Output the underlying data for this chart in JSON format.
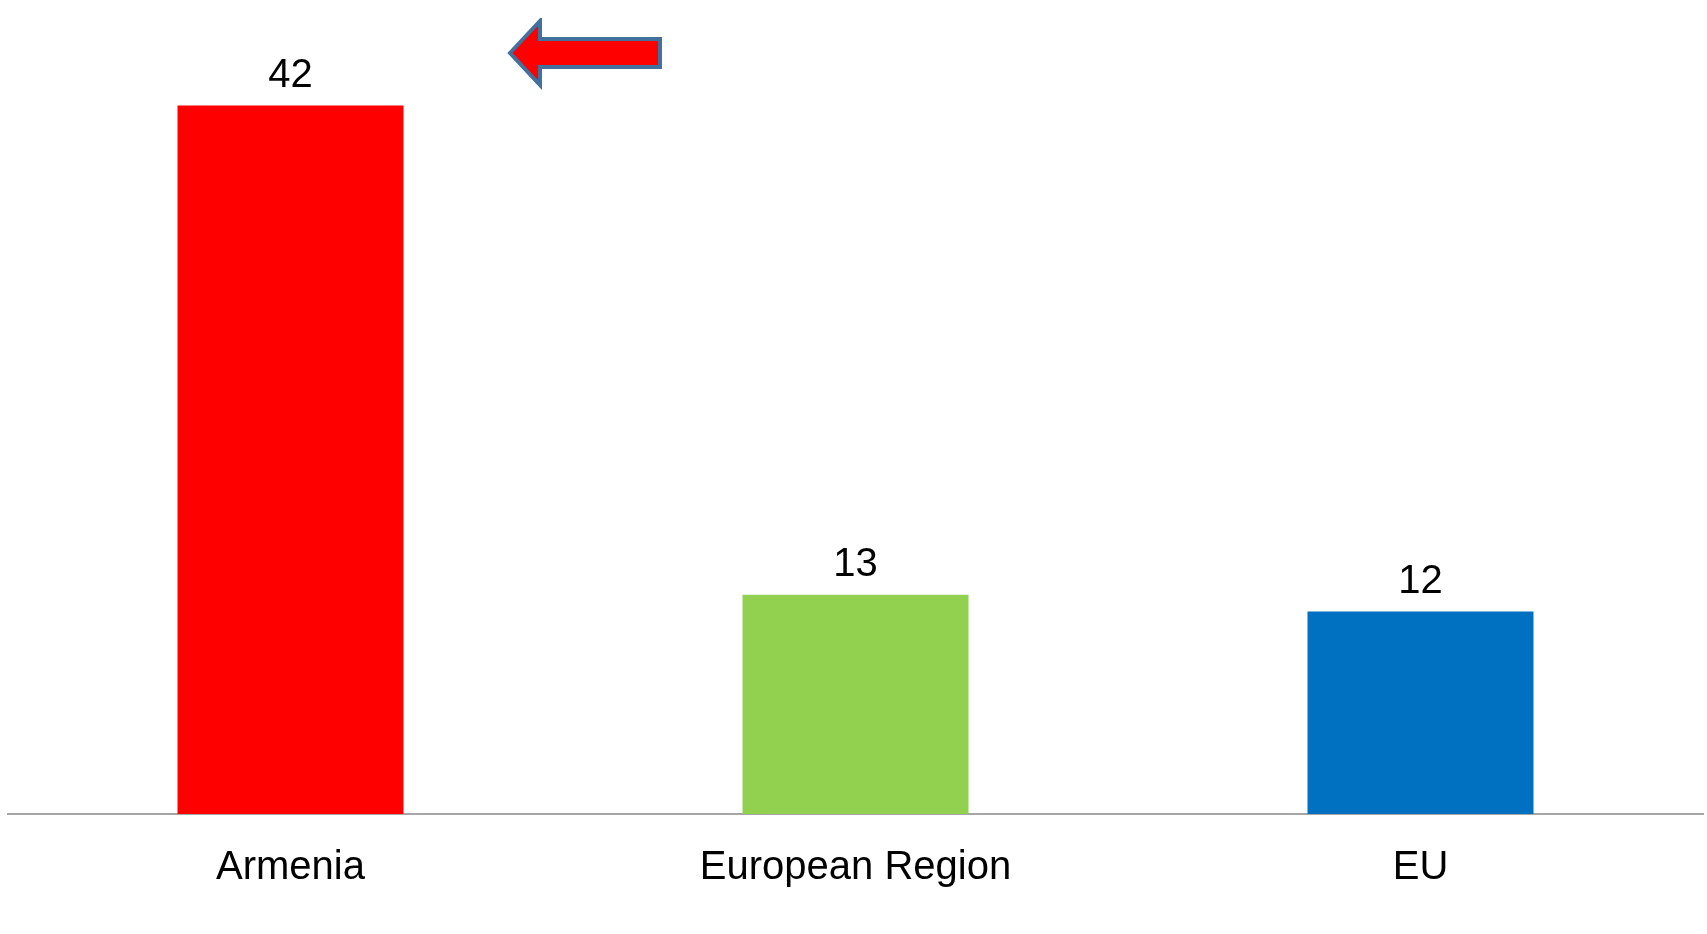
{
  "chart_data": {
    "type": "bar",
    "categories": [
      "Armenia",
      "European Region",
      "EU"
    ],
    "values": [
      42,
      13,
      12
    ],
    "colors": [
      "#ff0000",
      "#92d050",
      "#0070c0"
    ],
    "data_labels": true
  }
}
